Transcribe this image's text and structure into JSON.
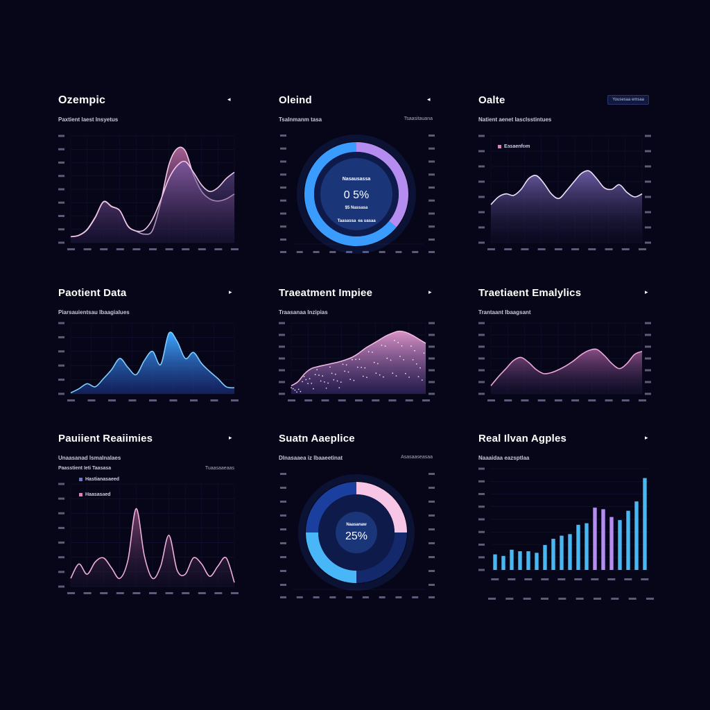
{
  "colors": {
    "background": "#070618",
    "pink": "#f0a8d8",
    "mauve": "#8a4a7a",
    "violet": "#6a5aa8",
    "blue": "#3a9cff",
    "cyan": "#4ab8f0",
    "purple": "#b58cf0"
  },
  "panels": {
    "p1": {
      "title": "Ozempic",
      "subtitle": "Paxtient laest Insyetus",
      "arrow": "◂"
    },
    "p2": {
      "title": "Oleind",
      "subtitle": "Tsalnmanm tasa",
      "subtitle_right": "Tsaasitauana",
      "arrow": "◂"
    },
    "p3": {
      "title": "Oalte",
      "subtitle": "Natient aenet Iasclsstintues",
      "badge": "Yousesaa emsaa",
      "legend": "Easaenfom"
    },
    "p4": {
      "title": "Paotient Data",
      "subtitle": "Piarsauientsau Ibaagialues",
      "arrow": "▸"
    },
    "p5": {
      "title": "Traeatment Impiee",
      "subtitle": "Traasanaa Inzipias",
      "arrow": "▸"
    },
    "p6": {
      "title": "Traetiaent Emalylics",
      "subtitle": "Trantaant Ibaagsant",
      "arrow": "▸"
    },
    "p7": {
      "title": "Pauiient Reaiimies",
      "subtitle": "Unaasanad lsmalnalaes",
      "subtitle2": "Paasstient Ieti Taasasa",
      "subtitle2_right": "Tuaasaaeaas",
      "legend_1": "Hastianasaeed",
      "legend_2": "Haasasaed",
      "arrow": "▸"
    },
    "p8": {
      "title": "Suatn Aaeplice",
      "subtitle": "Dlnasaaea iz lbaaeetinat",
      "subtitle_right": "Asasaaseasaa",
      "arrow": ""
    },
    "p9": {
      "title": "Real Ilvan Agples",
      "subtitle": "Naaaidaa eazsptlaa",
      "arrow": "▸"
    }
  },
  "chart_data": [
    {
      "id": "p1",
      "type": "area",
      "x": [
        0,
        1,
        2,
        3,
        4,
        5,
        6,
        7,
        8,
        9,
        10,
        11,
        12,
        13,
        14,
        15,
        16,
        17,
        18,
        19,
        20
      ],
      "series": [
        {
          "values": [
            28,
            35,
            62,
            120,
            190,
            168,
            150,
            76,
            54,
            40,
            58,
            190,
            365,
            440,
            430,
            318,
            240,
            205,
            195,
            205,
            228
          ]
        },
        {
          "values": [
            28,
            34,
            60,
            118,
            192,
            170,
            150,
            78,
            55,
            60,
            110,
            200,
            300,
            360,
            380,
            330,
            270,
            240,
            258,
            300,
            330
          ]
        }
      ],
      "ylim": [
        0,
        500
      ]
    },
    {
      "id": "p2",
      "type": "pie",
      "center_value": "0 5%",
      "center_label_top": "Nasausassa",
      "center_label_mid": "$5 Nassasa",
      "center_label_bottom": "Taasassa",
      "center_label_bottom_right": "ea uasaa",
      "segments": [
        {
          "value": 36,
          "color": "#b58cf0"
        },
        {
          "value": 64,
          "color": "#3a9cff"
        }
      ]
    },
    {
      "id": "p3",
      "type": "area",
      "x": [
        0,
        1,
        2,
        3,
        4,
        5,
        6,
        7,
        8,
        9,
        10,
        11,
        12,
        13,
        14,
        15,
        16,
        17,
        18,
        19,
        20
      ],
      "series": [
        {
          "values": [
            250,
            300,
            320,
            310,
            350,
            420,
            440,
            390,
            320,
            290,
            340,
            400,
            455,
            470,
            420,
            360,
            350,
            380,
            330,
            300,
            320
          ]
        }
      ],
      "ylim": [
        0,
        700
      ]
    },
    {
      "id": "p4",
      "type": "area",
      "x": [
        0,
        1,
        2,
        3,
        4,
        5,
        6,
        7,
        8,
        9,
        10,
        11,
        12,
        13,
        14,
        15,
        16,
        17,
        18,
        19,
        20
      ],
      "series": [
        {
          "values": [
            10,
            50,
            100,
            70,
            150,
            240,
            350,
            260,
            190,
            330,
            420,
            290,
            600,
            520,
            350,
            410,
            300,
            220,
            150,
            70,
            60
          ]
        }
      ],
      "ylim": [
        0,
        700
      ]
    },
    {
      "id": "p5",
      "type": "area",
      "x": [
        0,
        1,
        2,
        3,
        4,
        5,
        6,
        7,
        8,
        9,
        10,
        11,
        12,
        13,
        14,
        15,
        16,
        17,
        18,
        19,
        20
      ],
      "series": [
        {
          "values": [
            80,
            120,
            200,
            250,
            270,
            285,
            300,
            315,
            335,
            360,
            400,
            450,
            490,
            530,
            570,
            600,
            620,
            610,
            580,
            540,
            500
          ]
        }
      ],
      "ylim": [
        0,
        700
      ]
    },
    {
      "id": "p6",
      "type": "area",
      "x": [
        0,
        1,
        2,
        3,
        4,
        5,
        6,
        7,
        8,
        9,
        10,
        11,
        12,
        13,
        14,
        15,
        16,
        17,
        18,
        19,
        20
      ],
      "series": [
        {
          "values": [
            80,
            170,
            250,
            330,
            360,
            310,
            240,
            200,
            210,
            240,
            280,
            330,
            390,
            430,
            440,
            380,
            300,
            250,
            300,
            390,
            420
          ]
        }
      ],
      "ylim": [
        0,
        700
      ]
    },
    {
      "id": "p7",
      "type": "area",
      "x": [
        0,
        1,
        2,
        3,
        4,
        5,
        6,
        7,
        8,
        9,
        10,
        11,
        12,
        13,
        14,
        15,
        16,
        17,
        18,
        19,
        20
      ],
      "series": [
        {
          "values": [
            40,
            110,
            60,
            120,
            140,
            90,
            40,
            130,
            380,
            150,
            40,
            100,
            250,
            80,
            60,
            140,
            110,
            50,
            100,
            140,
            20
          ]
        }
      ],
      "ylim": [
        0,
        500
      ]
    },
    {
      "id": "p8",
      "type": "pie",
      "center_value": "25%",
      "center_label_top": "Naasanaw",
      "segments": [
        {
          "value": 25,
          "color": "#f7c6e6"
        },
        {
          "value": 25,
          "color": "#13296b"
        },
        {
          "value": 25,
          "color": "#49b6f7"
        },
        {
          "value": 25,
          "color": "#1b3f9f"
        }
      ]
    },
    {
      "id": "p9",
      "type": "bar",
      "values": [
        20,
        18,
        26,
        24,
        24,
        22,
        32,
        40,
        44,
        46,
        58,
        60,
        80,
        78,
        68,
        64,
        76,
        88,
        118
      ],
      "series_colors": [
        "#4ab8f0",
        "#4ab8f0",
        "#4ab8f0",
        "#4ab8f0",
        "#4ab8f0",
        "#4ab8f0",
        "#4ab8f0",
        "#4ab8f0",
        "#4ab8f0",
        "#4ab8f0",
        "#4ab8f0",
        "#4ab8f0",
        "#b58cf0",
        "#b58cf0",
        "#b58cf0",
        "#4ab8f0",
        "#4ab8f0",
        "#4ab8f0",
        "#4ab8f0"
      ],
      "ylim": [
        0,
        130
      ]
    }
  ]
}
